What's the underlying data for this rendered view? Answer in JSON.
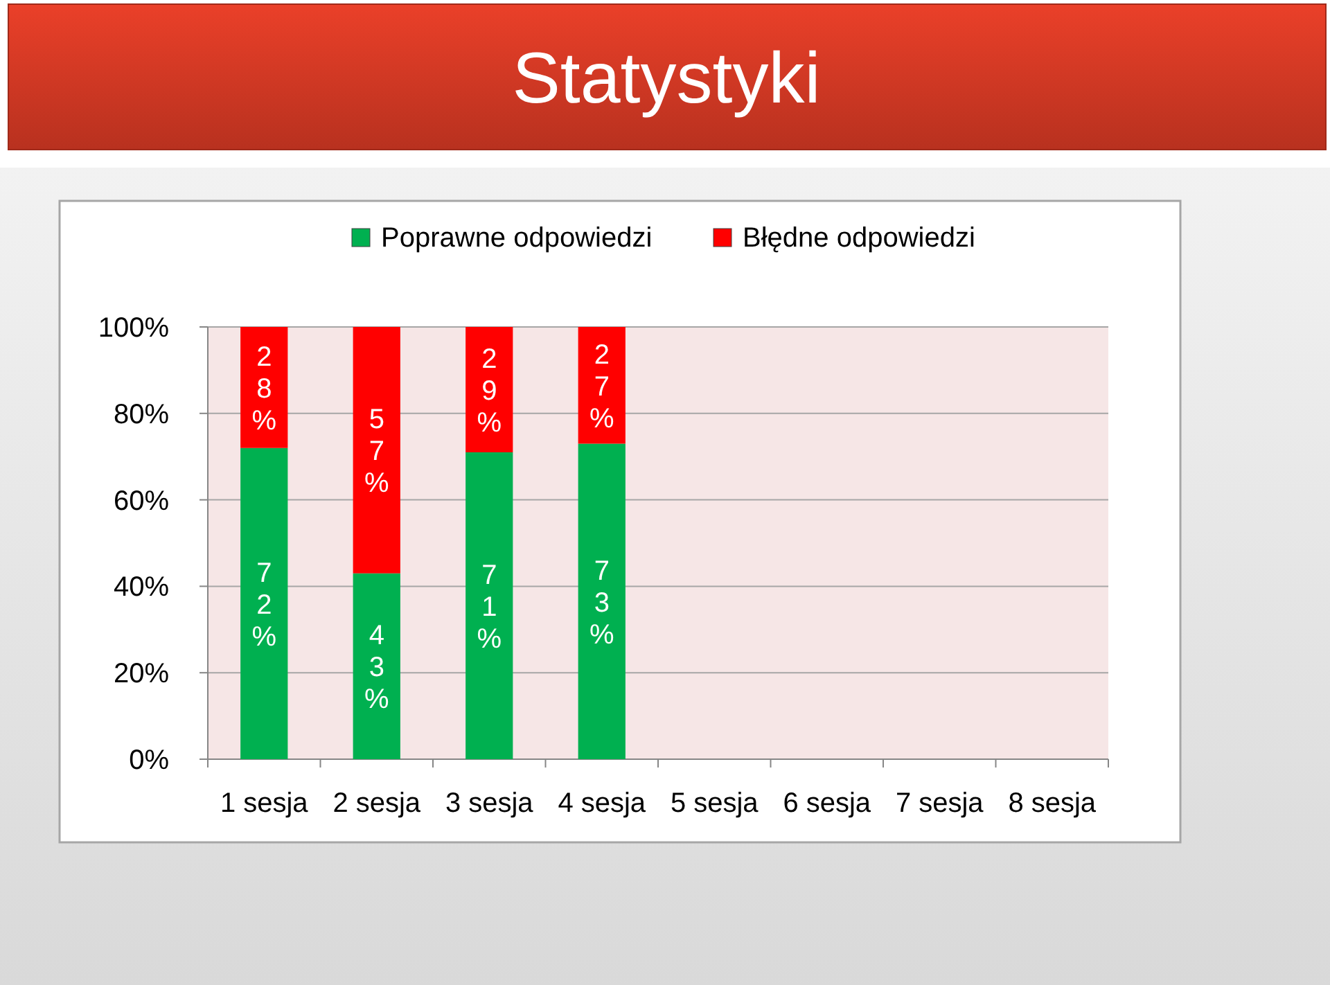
{
  "chart_data": {
    "type": "bar",
    "title": "Statystyki",
    "stacked": true,
    "categories": [
      "1 sesja",
      "2 sesja",
      "3 sesja",
      "4 sesja",
      "5 sesja",
      "6 sesja",
      "7 sesja",
      "8 sesja"
    ],
    "series": [
      {
        "name": "Poprawne odpowiedzi",
        "color": "#00b050",
        "values": [
          72,
          43,
          71,
          73,
          null,
          null,
          null,
          null
        ],
        "value_labels": [
          "72%",
          "43%",
          "71%",
          "73%",
          null,
          null,
          null,
          null
        ]
      },
      {
        "name": "Błędne odpowiedzi",
        "color": "#ff0000",
        "values": [
          28,
          57,
          29,
          27,
          null,
          null,
          null,
          null
        ],
        "value_labels": [
          "28%",
          "57%",
          "29%",
          "27%",
          null,
          null,
          null,
          null
        ]
      }
    ],
    "ylim": [
      0,
      100
    ],
    "yticks": [
      {
        "value": 0,
        "label": "0%"
      },
      {
        "value": 20,
        "label": "20%"
      },
      {
        "value": 40,
        "label": "40%"
      },
      {
        "value": 60,
        "label": "60%"
      },
      {
        "value": 80,
        "label": "80%"
      },
      {
        "value": 100,
        "label": "100%"
      }
    ],
    "grid": true,
    "legend": "top"
  }
}
